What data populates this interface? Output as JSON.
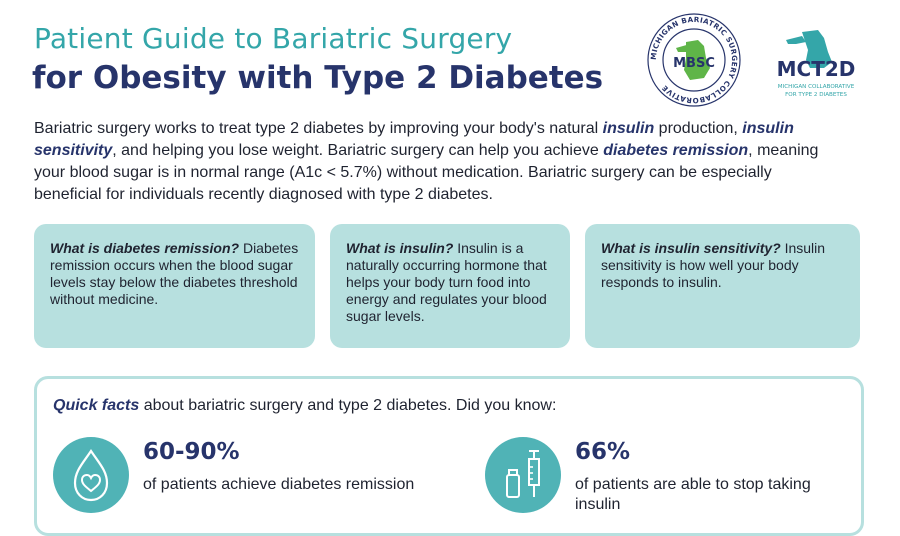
{
  "header": {
    "title_line1": "Patient Guide to Bariatric Surgery",
    "title_line2": "for Obesity with Type 2 Diabetes"
  },
  "logos": {
    "mbsc": {
      "center_text": "MBSC",
      "ring_text": "MICHIGAN BARIATRIC SURGERY COLLABORATIVE"
    },
    "mct2d": {
      "name": "MCT2D",
      "sub_line1": "MICHIGAN COLLABORATIVE",
      "sub_line2": "FOR TYPE 2 DIABETES"
    }
  },
  "intro": {
    "p1": "Bariatric surgery works to treat type 2 diabetes by improving your body's natural ",
    "em1": "insulin",
    "p2": " production, ",
    "em2": "insulin sensitivity",
    "p3": ", and helping you lose weight. Bariatric surgery can help you achieve ",
    "em3": "diabetes remission",
    "p4": ", meaning your blood sugar is in normal range (A1c < 5.7%) without medication. Bariatric surgery can be especially beneficial for individuals recently diagnosed with type 2 diabetes."
  },
  "cards": [
    {
      "q": "What is diabetes remission?",
      "a": " Diabetes remission occurs when the blood sugar levels stay below the diabetes threshold without medicine."
    },
    {
      "q": "What is insulin?",
      "a": " Insulin is a naturally occurring hormone that helps your body turn food into energy and regulates your blood sugar levels."
    },
    {
      "q": "What is insulin sensitivity?",
      "a": " Insulin sensitivity is how well your body responds to insulin."
    }
  ],
  "facts": {
    "lead": "Quick facts",
    "rest": " about bariatric surgery and type 2 diabetes. Did you know:",
    "items": [
      {
        "value": "60-90%",
        "text": "of patients achieve diabetes remission",
        "icon": "drop-heart-icon"
      },
      {
        "value": "66%",
        "text": "of patients are able to stop taking insulin",
        "icon": "syringe-vial-icon"
      }
    ]
  },
  "colors": {
    "teal": "#34a6a9",
    "navy": "#27346b",
    "card_bg": "#b7e0df",
    "icon_bg": "#50b3b6"
  }
}
